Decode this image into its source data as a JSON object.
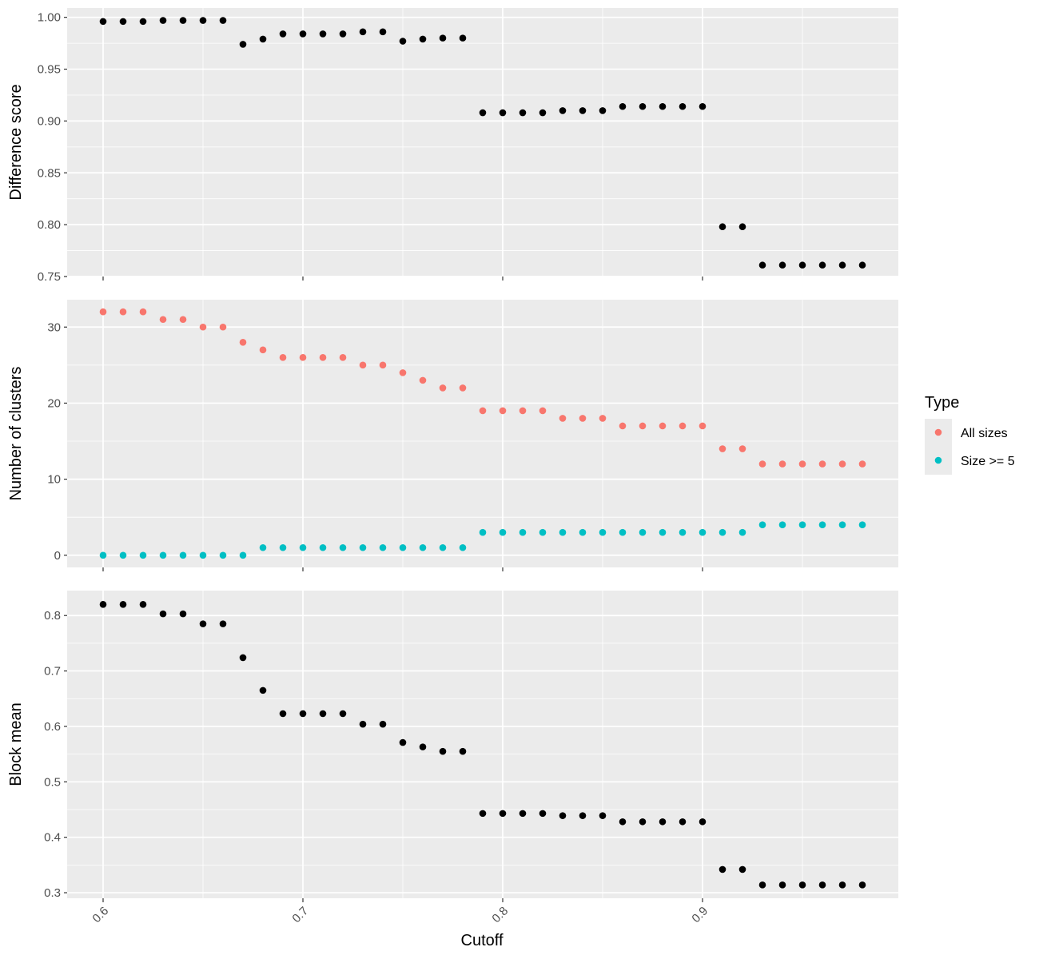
{
  "chart_data": [
    {
      "type": "scatter",
      "ylabel": "Difference score",
      "xlim": [
        0.582,
        0.998
      ],
      "ylim": [
        0.75,
        1.009
      ],
      "yticks": [
        0.75,
        0.8,
        0.85,
        0.9,
        0.95,
        1.0
      ],
      "ytick_labels": [
        "0.75",
        "0.80",
        "0.85",
        "0.90",
        "0.95",
        "1.00"
      ],
      "grid": true,
      "series": [
        {
          "color": "#000000",
          "x": [
            0.6,
            0.61,
            0.62,
            0.63,
            0.64,
            0.65,
            0.66,
            0.67,
            0.68,
            0.69,
            0.7,
            0.71,
            0.72,
            0.73,
            0.74,
            0.75,
            0.76,
            0.77,
            0.78,
            0.79,
            0.8,
            0.81,
            0.82,
            0.83,
            0.84,
            0.85,
            0.86,
            0.87,
            0.88,
            0.89,
            0.9,
            0.91,
            0.92,
            0.93,
            0.94,
            0.95,
            0.96,
            0.97,
            0.98
          ],
          "y": [
            0.996,
            0.996,
            0.996,
            0.997,
            0.997,
            0.997,
            0.997,
            0.974,
            0.979,
            0.984,
            0.984,
            0.984,
            0.984,
            0.986,
            0.986,
            0.977,
            0.979,
            0.98,
            0.98,
            0.908,
            0.908,
            0.908,
            0.908,
            0.91,
            0.91,
            0.91,
            0.914,
            0.914,
            0.914,
            0.914,
            0.914,
            0.798,
            0.798,
            0.761,
            0.761,
            0.761,
            0.761,
            0.761,
            0.761
          ]
        }
      ]
    },
    {
      "type": "scatter",
      "ylabel": "Number of clusters",
      "xlim": [
        0.582,
        0.998
      ],
      "ylim": [
        -1.6,
        33.6
      ],
      "yticks": [
        0,
        10,
        20,
        30
      ],
      "ytick_labels": [
        "0",
        "10",
        "20",
        "30"
      ],
      "grid": true,
      "series": [
        {
          "name": "All sizes",
          "color": "#F8766D",
          "x": [
            0.6,
            0.61,
            0.62,
            0.63,
            0.64,
            0.65,
            0.66,
            0.67,
            0.68,
            0.69,
            0.7,
            0.71,
            0.72,
            0.73,
            0.74,
            0.75,
            0.76,
            0.77,
            0.78,
            0.79,
            0.8,
            0.81,
            0.82,
            0.83,
            0.84,
            0.85,
            0.86,
            0.87,
            0.88,
            0.89,
            0.9,
            0.91,
            0.92,
            0.93,
            0.94,
            0.95,
            0.96,
            0.97,
            0.98
          ],
          "y": [
            32,
            32,
            32,
            31,
            31,
            30,
            30,
            28,
            27,
            26,
            26,
            26,
            26,
            25,
            25,
            24,
            23,
            22,
            22,
            19,
            19,
            19,
            19,
            18,
            18,
            18,
            17,
            17,
            17,
            17,
            17,
            14,
            14,
            12,
            12,
            12,
            12,
            12,
            12
          ]
        },
        {
          "name": "Size >= 5",
          "color": "#00BFC4",
          "x": [
            0.6,
            0.61,
            0.62,
            0.63,
            0.64,
            0.65,
            0.66,
            0.67,
            0.68,
            0.69,
            0.7,
            0.71,
            0.72,
            0.73,
            0.74,
            0.75,
            0.76,
            0.77,
            0.78,
            0.79,
            0.8,
            0.81,
            0.82,
            0.83,
            0.84,
            0.85,
            0.86,
            0.87,
            0.88,
            0.89,
            0.9,
            0.91,
            0.92,
            0.93,
            0.94,
            0.95,
            0.96,
            0.97,
            0.98
          ],
          "y": [
            0,
            0,
            0,
            0,
            0,
            0,
            0,
            0,
            1,
            1,
            1,
            1,
            1,
            1,
            1,
            1,
            1,
            1,
            1,
            3,
            3,
            3,
            3,
            3,
            3,
            3,
            3,
            3,
            3,
            3,
            3,
            3,
            3,
            4,
            4,
            4,
            4,
            4,
            4
          ]
        }
      ]
    },
    {
      "type": "scatter",
      "ylabel": "Block mean",
      "xlabel": "Cutoff",
      "xlim": [
        0.582,
        0.998
      ],
      "ylim": [
        0.29,
        0.845
      ],
      "yticks": [
        0.3,
        0.4,
        0.5,
        0.6,
        0.7,
        0.8
      ],
      "ytick_labels": [
        "0.3",
        "0.4",
        "0.5",
        "0.6",
        "0.7",
        "0.8"
      ],
      "grid": true,
      "series": [
        {
          "color": "#000000",
          "x": [
            0.6,
            0.61,
            0.62,
            0.63,
            0.64,
            0.65,
            0.66,
            0.67,
            0.68,
            0.69,
            0.7,
            0.71,
            0.72,
            0.73,
            0.74,
            0.75,
            0.76,
            0.77,
            0.78,
            0.79,
            0.8,
            0.81,
            0.82,
            0.83,
            0.84,
            0.85,
            0.86,
            0.87,
            0.88,
            0.89,
            0.9,
            0.91,
            0.92,
            0.93,
            0.94,
            0.95,
            0.96,
            0.97,
            0.98
          ],
          "y": [
            0.82,
            0.82,
            0.82,
            0.803,
            0.803,
            0.785,
            0.785,
            0.724,
            0.665,
            0.623,
            0.623,
            0.623,
            0.623,
            0.604,
            0.604,
            0.571,
            0.563,
            0.555,
            0.555,
            0.443,
            0.443,
            0.443,
            0.443,
            0.439,
            0.439,
            0.439,
            0.428,
            0.428,
            0.428,
            0.428,
            0.428,
            0.342,
            0.342,
            0.314,
            0.314,
            0.314,
            0.314,
            0.314,
            0.314
          ]
        }
      ]
    }
  ],
  "x_axis": {
    "title": "Cutoff",
    "ticks": [
      0.6,
      0.7,
      0.8,
      0.9
    ],
    "tick_labels": [
      "0.6",
      "0.7",
      "0.8",
      "0.9"
    ]
  },
  "legend": {
    "title": "Type",
    "placement": "right",
    "items": [
      {
        "label": "All sizes",
        "color": "#F8766D"
      },
      {
        "label": "Size >= 5",
        "color": "#00BFC4"
      }
    ]
  },
  "colors": {
    "panel_background": "#EBEBEB",
    "grid_major": "#FFFFFF",
    "tick_color": "#333333"
  }
}
